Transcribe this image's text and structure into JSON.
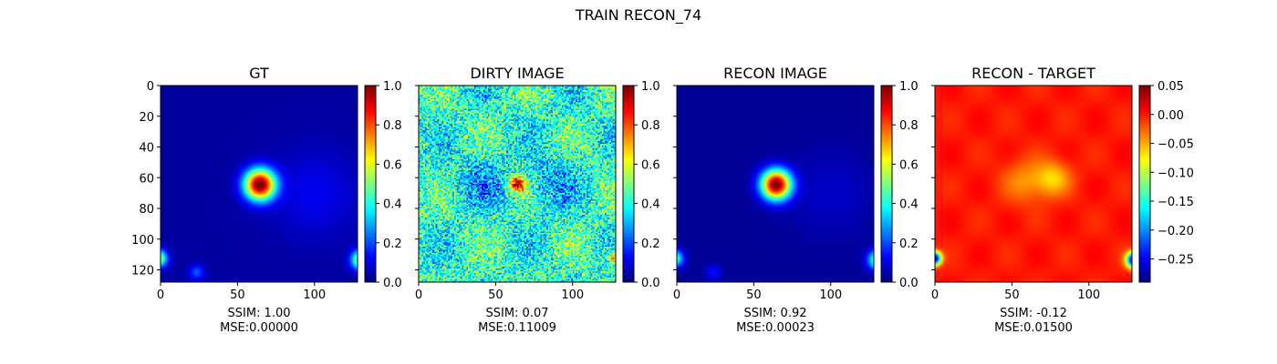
{
  "figure": {
    "suptitle": "TRAIN RECON_74"
  },
  "colormap": "jet",
  "chart_data": [
    {
      "type": "heatmap",
      "title": "GT",
      "xlabel_lines": [
        "SSIM: 1.00",
        "MSE:0.00000"
      ],
      "x_ticks": [
        "0",
        "50",
        "100"
      ],
      "y_ticks": [
        "0",
        "20",
        "40",
        "60",
        "80",
        "100",
        "120"
      ],
      "image_size": [
        128,
        128
      ],
      "color_range": [
        0.0,
        1.0
      ],
      "colorbar_ticks": [
        "0.0",
        "0.2",
        "0.4",
        "0.6",
        "0.8",
        "1.0"
      ],
      "content": "bright gaussian source near (64, 64); faint sources at image corners"
    },
    {
      "type": "heatmap",
      "title": "DIRTY IMAGE",
      "xlabel_lines": [
        "SSIM: 0.07",
        "MSE:0.11009"
      ],
      "x_ticks": [
        "0",
        "50",
        "100"
      ],
      "image_size": [
        128,
        128
      ],
      "color_range": [
        0.0,
        1.0
      ],
      "colorbar_ticks": [
        "0.0",
        "0.2",
        "0.4",
        "0.6",
        "0.8",
        "1.0"
      ],
      "content": "noisy dirty image with peak near (64, 64)"
    },
    {
      "type": "heatmap",
      "title": "RECON IMAGE",
      "xlabel_lines": [
        "SSIM: 0.92",
        "MSE:0.00023"
      ],
      "x_ticks": [
        "0",
        "50",
        "100"
      ],
      "image_size": [
        128,
        128
      ],
      "color_range": [
        0.0,
        1.0
      ],
      "colorbar_ticks": [
        "0.0",
        "0.2",
        "0.4",
        "0.6",
        "0.8",
        "1.0"
      ],
      "content": "reconstructed source near (64, 64)"
    },
    {
      "type": "heatmap",
      "title": "RECON - TARGET",
      "xlabel_lines": [
        "SSIM: -0.12",
        "MSE:0.01500"
      ],
      "x_ticks": [
        "0",
        "50",
        "100"
      ],
      "image_size": [
        128,
        128
      ],
      "color_range": [
        -0.29,
        0.05
      ],
      "colorbar_ticks": [
        "0.05",
        "0.00",
        "−0.05",
        "−0.10",
        "−0.15",
        "−0.20",
        "−0.25"
      ],
      "colorbar_tick_values": [
        0.05,
        0.0,
        -0.05,
        -0.1,
        -0.15,
        -0.2,
        -0.25
      ],
      "content": "residual mostly near 0.0; negative blob near (75, 60); negative edges"
    }
  ]
}
